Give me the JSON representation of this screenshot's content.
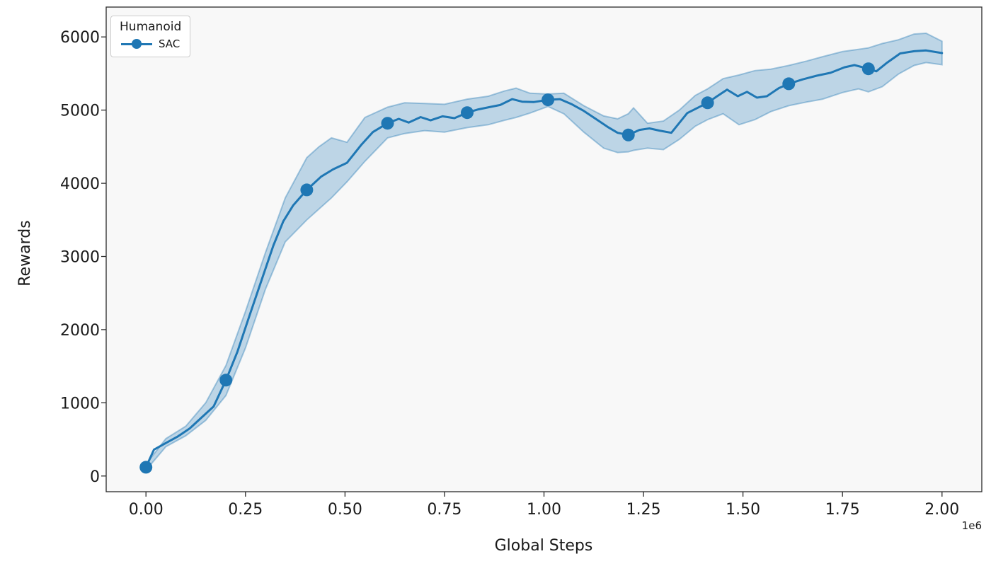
{
  "chart_data": {
    "type": "line",
    "title": "",
    "xlabel": "Global Steps",
    "ylabel": "Rewards",
    "x_offset_label": "1e6",
    "grid": false,
    "plot_bg": "#f8f8f8",
    "figure_bg": "#ffffff",
    "spine_color": "#2b2b2b",
    "text_color": "#1a1a1a",
    "accent_color": "#1f77b4",
    "band_opacity": 0.27,
    "band_edge_opacity": 0.38,
    "xlim": [
      -100000,
      2100000
    ],
    "ylim": [
      -215,
      6408
    ],
    "xticks": {
      "values": [
        0,
        250000,
        500000,
        750000,
        1000000,
        1250000,
        1500000,
        1750000,
        2000000
      ],
      "labels": [
        "0.00",
        "0.25",
        "0.50",
        "0.75",
        "1.00",
        "1.25",
        "1.50",
        "1.75",
        "2.00"
      ]
    },
    "yticks": {
      "values": [
        0,
        1000,
        2000,
        3000,
        4000,
        5000,
        6000
      ],
      "labels": [
        "0",
        "1000",
        "2000",
        "3000",
        "4000",
        "5000",
        "6000"
      ]
    },
    "legend": {
      "title": "Humanoid",
      "position": "upper left",
      "entries": [
        {
          "label": "SAC",
          "color": "#1f77b4",
          "marker": "circle"
        }
      ]
    },
    "series": [
      {
        "name": "SAC",
        "color": "#1f77b4",
        "line": [
          [
            0,
            120
          ],
          [
            20000,
            360
          ],
          [
            50000,
            450
          ],
          [
            80000,
            540
          ],
          [
            110000,
            650
          ],
          [
            140000,
            800
          ],
          [
            170000,
            950
          ],
          [
            201000,
            1310
          ],
          [
            230000,
            1700
          ],
          [
            260000,
            2190
          ],
          [
            290000,
            2670
          ],
          [
            320000,
            3150
          ],
          [
            345000,
            3480
          ],
          [
            370000,
            3700
          ],
          [
            404000,
            3910
          ],
          [
            440000,
            4090
          ],
          [
            470000,
            4190
          ],
          [
            505000,
            4280
          ],
          [
            540000,
            4520
          ],
          [
            570000,
            4700
          ],
          [
            607000,
            4820
          ],
          [
            635000,
            4880
          ],
          [
            660000,
            4830
          ],
          [
            690000,
            4905
          ],
          [
            715000,
            4860
          ],
          [
            745000,
            4915
          ],
          [
            775000,
            4890
          ],
          [
            807000,
            4965
          ],
          [
            835000,
            5010
          ],
          [
            862000,
            5040
          ],
          [
            890000,
            5070
          ],
          [
            920000,
            5150
          ],
          [
            945000,
            5115
          ],
          [
            975000,
            5110
          ],
          [
            1010000,
            5140
          ],
          [
            1040000,
            5150
          ],
          [
            1070000,
            5080
          ],
          [
            1100000,
            4990
          ],
          [
            1130000,
            4880
          ],
          [
            1160000,
            4770
          ],
          [
            1185000,
            4690
          ],
          [
            1212000,
            4660
          ],
          [
            1240000,
            4730
          ],
          [
            1265000,
            4750
          ],
          [
            1290000,
            4720
          ],
          [
            1320000,
            4690
          ],
          [
            1360000,
            4960
          ],
          [
            1411000,
            5100
          ],
          [
            1435000,
            5190
          ],
          [
            1460000,
            5280
          ],
          [
            1487000,
            5190
          ],
          [
            1510000,
            5250
          ],
          [
            1535000,
            5170
          ],
          [
            1560000,
            5190
          ],
          [
            1590000,
            5300
          ],
          [
            1615000,
            5360
          ],
          [
            1650000,
            5420
          ],
          [
            1685000,
            5470
          ],
          [
            1720000,
            5510
          ],
          [
            1755000,
            5585
          ],
          [
            1780000,
            5615
          ],
          [
            1815000,
            5565
          ],
          [
            1835000,
            5530
          ],
          [
            1860000,
            5640
          ],
          [
            1895000,
            5775
          ],
          [
            1930000,
            5805
          ],
          [
            1960000,
            5815
          ],
          [
            2000000,
            5780
          ]
        ],
        "markers": [
          [
            0,
            120
          ],
          [
            201000,
            1310
          ],
          [
            404000,
            3910
          ],
          [
            607000,
            4820
          ],
          [
            807000,
            4965
          ],
          [
            1010000,
            5140
          ],
          [
            1212000,
            4660
          ],
          [
            1411000,
            5100
          ],
          [
            1615000,
            5360
          ],
          [
            1815000,
            5565
          ]
        ],
        "band": [
          [
            0,
            80,
            160
          ],
          [
            50000,
            400,
            510
          ],
          [
            100000,
            550,
            680
          ],
          [
            150000,
            760,
            1000
          ],
          [
            201000,
            1100,
            1510
          ],
          [
            250000,
            1750,
            2250
          ],
          [
            300000,
            2550,
            3050
          ],
          [
            350000,
            3200,
            3800
          ],
          [
            404000,
            3500,
            4350
          ],
          [
            435000,
            3650,
            4500
          ],
          [
            466000,
            3800,
            4620
          ],
          [
            505000,
            4020,
            4560
          ],
          [
            550000,
            4300,
            4900
          ],
          [
            607000,
            4620,
            5040
          ],
          [
            650000,
            4680,
            5100
          ],
          [
            700000,
            4720,
            5090
          ],
          [
            750000,
            4700,
            5080
          ],
          [
            807000,
            4760,
            5150
          ],
          [
            860000,
            4800,
            5190
          ],
          [
            900000,
            4860,
            5260
          ],
          [
            930000,
            4900,
            5300
          ],
          [
            965000,
            4960,
            5230
          ],
          [
            1010000,
            5050,
            5220
          ],
          [
            1050000,
            4950,
            5230
          ],
          [
            1100000,
            4700,
            5060
          ],
          [
            1150000,
            4480,
            4920
          ],
          [
            1185000,
            4420,
            4880
          ],
          [
            1212000,
            4430,
            4950
          ],
          [
            1225000,
            4450,
            5030
          ],
          [
            1260000,
            4480,
            4820
          ],
          [
            1300000,
            4460,
            4850
          ],
          [
            1340000,
            4600,
            5000
          ],
          [
            1380000,
            4780,
            5200
          ],
          [
            1411000,
            4870,
            5290
          ],
          [
            1450000,
            4950,
            5430
          ],
          [
            1490000,
            4800,
            5480
          ],
          [
            1530000,
            4870,
            5540
          ],
          [
            1570000,
            4980,
            5560
          ],
          [
            1615000,
            5060,
            5610
          ],
          [
            1660000,
            5110,
            5670
          ],
          [
            1700000,
            5150,
            5730
          ],
          [
            1750000,
            5240,
            5800
          ],
          [
            1790000,
            5290,
            5830
          ],
          [
            1815000,
            5250,
            5850
          ],
          [
            1850000,
            5320,
            5910
          ],
          [
            1890000,
            5490,
            5960
          ],
          [
            1930000,
            5610,
            6040
          ],
          [
            1960000,
            5650,
            6050
          ],
          [
            2000000,
            5620,
            5940
          ]
        ]
      }
    ]
  }
}
